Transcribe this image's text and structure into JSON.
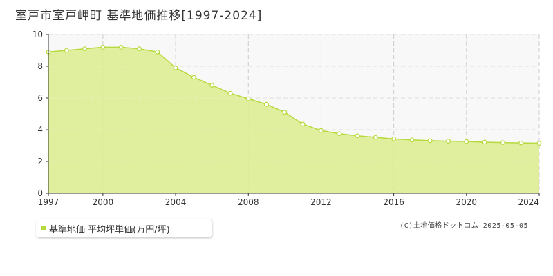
{
  "title": "室戸市室戸岬町 基準地価推移[1997-2024]",
  "legend": {
    "label": "基準地価 平均坪単価(万円/坪)"
  },
  "credit": "(C)土地価格ドットコム 2025-05-05",
  "colors": {
    "fill": "#dbed92",
    "line": "#b6d93c",
    "marker_fill": "#ffffff",
    "grid": "#cccccc",
    "plot_bg_upper": "#f8f8f8"
  },
  "chart_data": {
    "type": "area",
    "x": [
      1997,
      1998,
      1999,
      2000,
      2001,
      2002,
      2003,
      2004,
      2005,
      2006,
      2007,
      2008,
      2009,
      2010,
      2011,
      2012,
      2013,
      2014,
      2015,
      2016,
      2017,
      2018,
      2019,
      2020,
      2021,
      2022,
      2023,
      2024
    ],
    "series": [
      {
        "values": [
          8.9,
          9.0,
          9.1,
          9.2,
          9.2,
          9.1,
          8.9,
          7.9,
          7.3,
          6.8,
          6.3,
          5.95,
          5.6,
          5.1,
          4.35,
          3.95,
          3.75,
          3.62,
          3.52,
          3.42,
          3.36,
          3.31,
          3.28,
          3.26,
          3.22,
          3.19,
          3.17,
          3.15
        ]
      }
    ],
    "xlim": [
      1997,
      2024
    ],
    "ylim": [
      0,
      10
    ],
    "x_ticks": [
      "1997",
      "2000",
      "2004",
      "2008",
      "2012",
      "2016",
      "2020",
      "2024"
    ],
    "y_ticks": [
      "0",
      "2",
      "4",
      "6",
      "8",
      "10"
    ],
    "grid": true,
    "legend_position": "bottom-left"
  }
}
